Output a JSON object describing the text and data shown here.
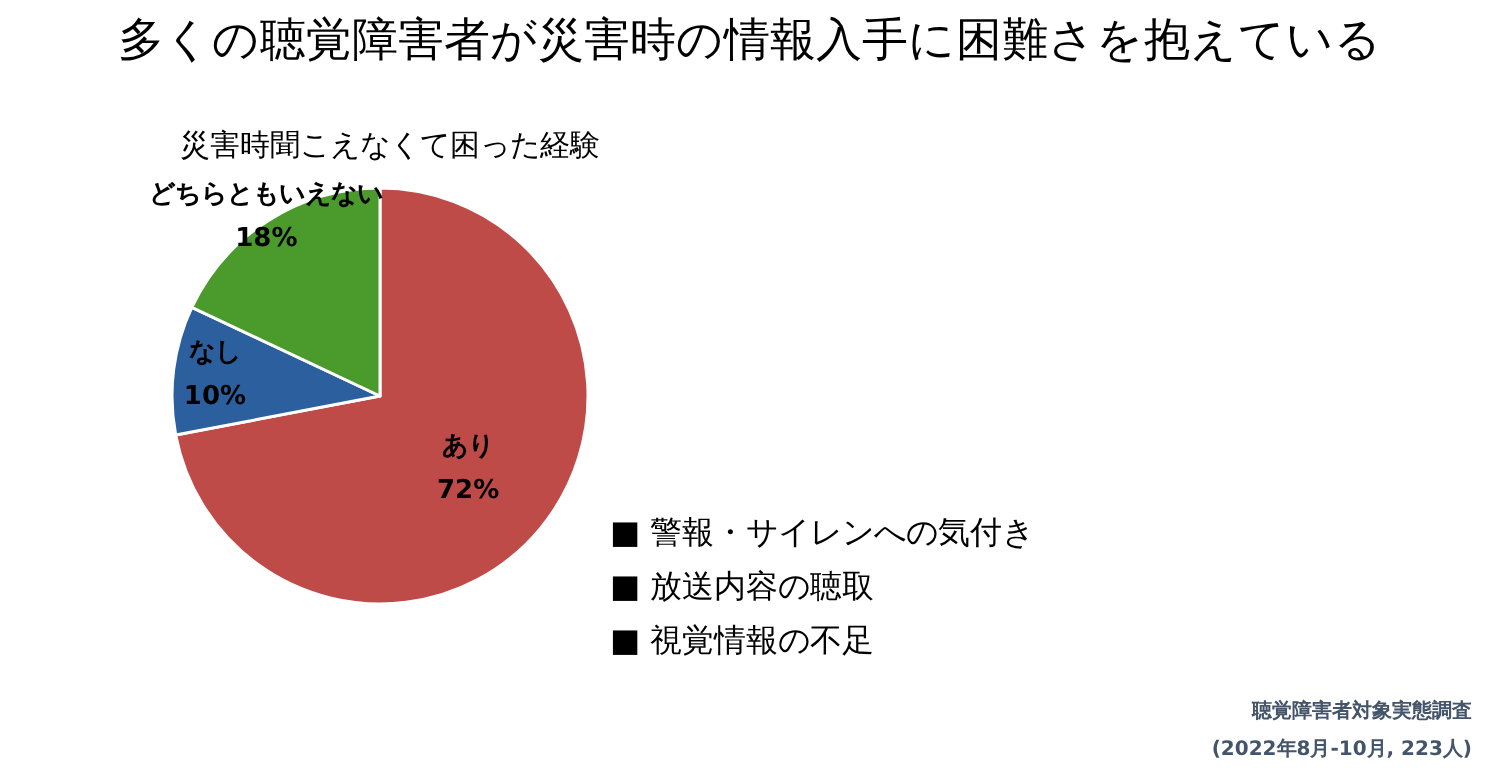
{
  "chart_data": {
    "type": "pie",
    "title": "多くの聴覚障害者が災害時の情報入手に困難さを抱えている",
    "subtitle": "災害時聞こえなくて困った経験",
    "categories": [
      "あり",
      "なし",
      "どちらともいえない"
    ],
    "values": [
      72,
      10,
      18
    ],
    "colors": [
      "#be4b48",
      "#2c5f9e",
      "#4a9a2c"
    ],
    "value_labels": [
      "72%",
      "10%",
      "18%"
    ],
    "annotations": [
      "■ 警報・サイレンへの気付き",
      "■ 放送内容の聴取",
      "■ 視覚情報の不足",
      "聴覚障害者対象実態調査",
      "(2022年8月-10月, 223人)"
    ]
  }
}
